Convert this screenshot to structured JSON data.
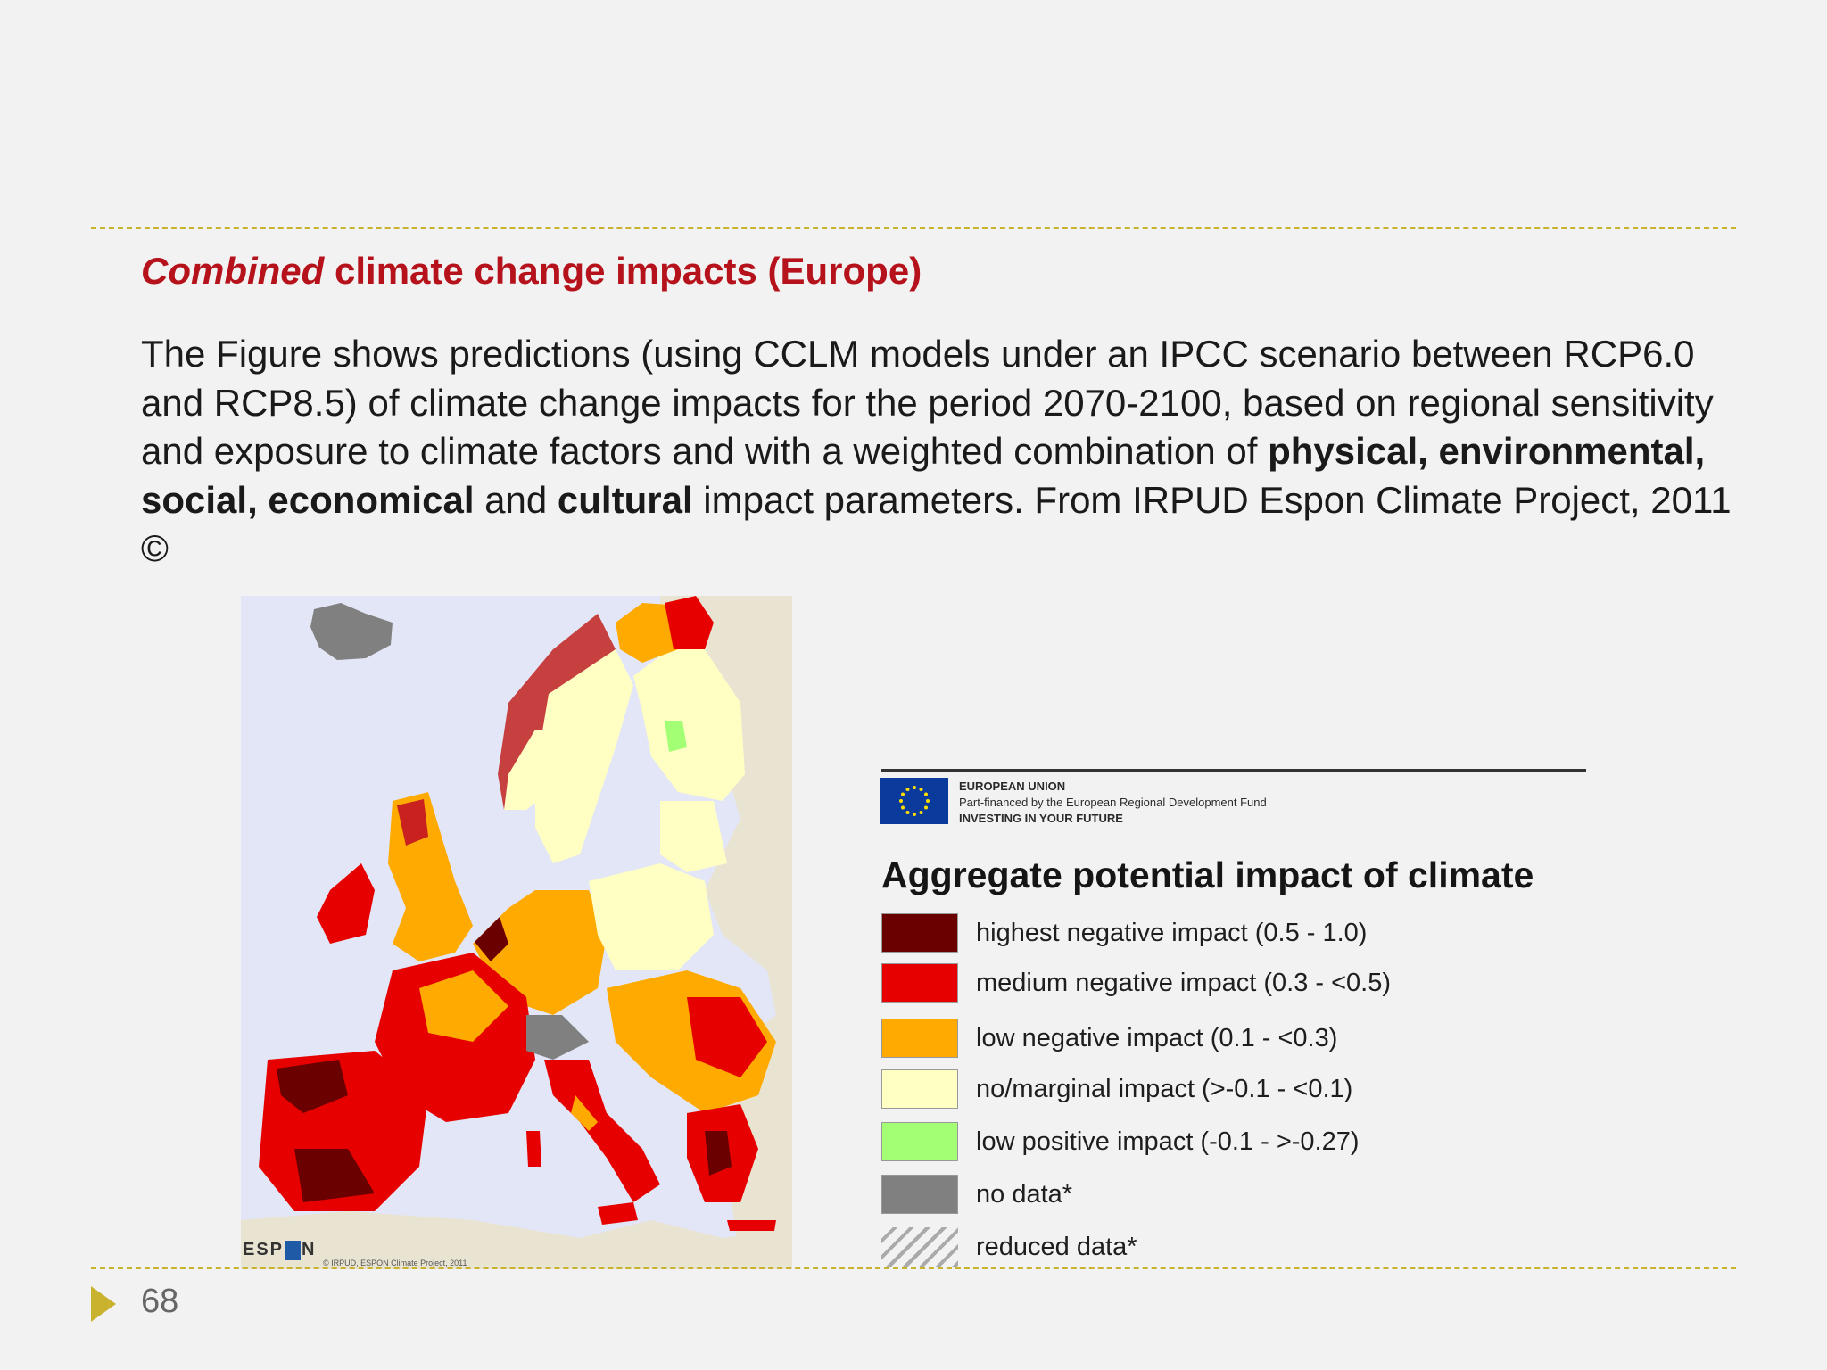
{
  "slide": {
    "title_italic": "Combined",
    "title_rest": " climate change impacts (Europe)",
    "body": {
      "part1": "The Figure shows predictions (using CCLM models under an IPCC scenario between RCP6.0 and RCP8.5) of climate change impacts for the period 2070-2100,  based on regional sensitivity and exposure to climate factors and with a weighted combination of ",
      "bold1": "physical, environmental, social, economical",
      "part2": " and ",
      "bold2": "cultural",
      "part3": " impact parameters.  From IRPUD Espon Climate Project, 2011 ©"
    },
    "page_number": "68"
  },
  "map": {
    "logo_text_left": "ESP",
    "logo_text_right": "N",
    "credit": "© IRPUD, ESPON Climate Project, 2011"
  },
  "legend": {
    "eu_line1": "EUROPEAN UNION",
    "eu_line2": "Part-financed by the European Regional Development Fund",
    "eu_line3": "INVESTING IN YOUR FUTURE",
    "title": "Aggregate potential impact of climate",
    "items": [
      {
        "label": "highest negative impact (0.5 - 1.0)",
        "color": "#6b0000"
      },
      {
        "label": "medium negative impact (0.3 - <0.5)",
        "color": "#e60000"
      },
      {
        "label": "low negative impact (0.1 - <0.3)",
        "color": "#ffaa00"
      },
      {
        "label": "no/marginal impact (>-0.1 - <0.1)",
        "color": "#ffffc4"
      },
      {
        "label": "low positive impact (-0.1 - >-0.27)",
        "color": "#a3ff73"
      },
      {
        "label": "no data*",
        "color": "#808080"
      },
      {
        "label": "reduced data*",
        "color": "hatched"
      }
    ]
  },
  "colors": {
    "title_red": "#b5121b",
    "rule": "#c9b22e",
    "sea": "#e3e6f6"
  },
  "icons": {
    "footer_bullet": "triangle-right-icon",
    "eu_flag": "eu-flag-icon"
  }
}
